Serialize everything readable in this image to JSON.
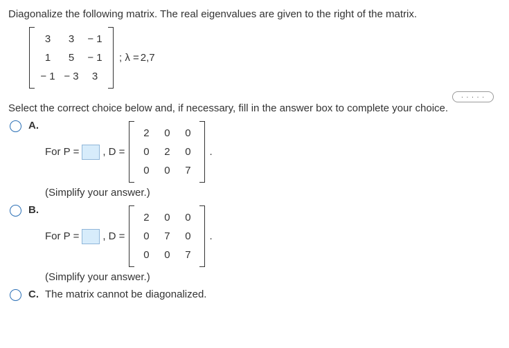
{
  "question": {
    "prompt": "Diagonalize the following matrix. The real eigenvalues are given to the right of the matrix.",
    "matrix": {
      "rows": [
        [
          "3",
          "3",
          "− 1"
        ],
        [
          "1",
          "5",
          "− 1"
        ],
        [
          "− 1",
          "− 3",
          "3"
        ]
      ]
    },
    "eigen_prefix": "; λ =",
    "eigen_values": "2,7",
    "more_button": ". . . . ."
  },
  "choice_prompt": "Select the correct choice below and, if necessary, fill in the answer box to complete your choice.",
  "options": {
    "a": {
      "label": "A.",
      "for_p": "For P =",
      "d_eq": ", D =",
      "matrix": {
        "rows": [
          [
            "2",
            "0",
            "0"
          ],
          [
            "0",
            "2",
            "0"
          ],
          [
            "0",
            "0",
            "7"
          ]
        ]
      },
      "period": ".",
      "simplify": "(Simplify your answer.)"
    },
    "b": {
      "label": "B.",
      "for_p": "For P =",
      "d_eq": ", D =",
      "matrix": {
        "rows": [
          [
            "2",
            "0",
            "0"
          ],
          [
            "0",
            "7",
            "0"
          ],
          [
            "0",
            "0",
            "7"
          ]
        ]
      },
      "period": ".",
      "simplify": "(Simplify your answer.)"
    },
    "c": {
      "label": "C.",
      "text": "The matrix cannot be diagonalized."
    }
  }
}
